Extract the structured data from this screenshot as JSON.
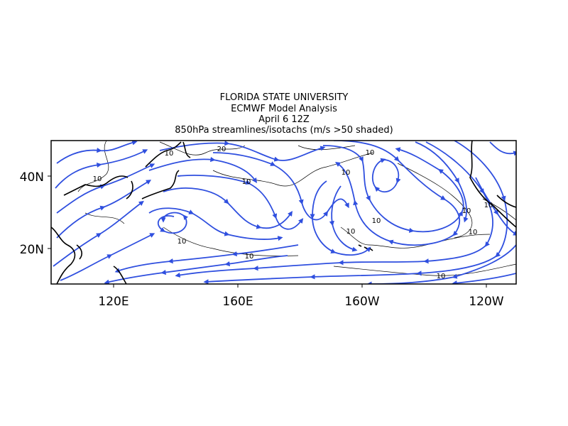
{
  "title_lines": [
    "FLORIDA STATE UNIVERSITY",
    "ECMWF Model Analysis",
    "April 6 12Z",
    "850hPa streamlines/isotachs (m/s >50 shaded)"
  ],
  "lon_labels": [
    "120E",
    "160E",
    "160W",
    "120W"
  ],
  "lat_labels": [
    "40N",
    "20N"
  ],
  "contour_labels": [
    10,
    20,
    10,
    10,
    10,
    10,
    10,
    10,
    10,
    10,
    10,
    10,
    10,
    10
  ]
}
